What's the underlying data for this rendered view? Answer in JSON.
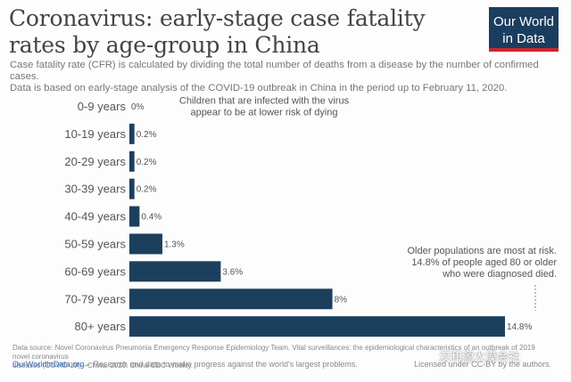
{
  "title": "Coronavirus: early-stage case fatality rates by age-group in China",
  "subtitle_line1": "Case fatality rate (CFR) is calculated by dividing the total number of deaths from a disease by the number of confirmed cases.",
  "subtitle_line2": "Data is based on early-stage analysis of the COVID-19 outbreak in China in the period up to February 11, 2020.",
  "logo": {
    "line1": "Our World",
    "line2": "in Data",
    "bg": "#1b3d5f",
    "accent": "#c8282d"
  },
  "chart_data": {
    "type": "bar",
    "orientation": "horizontal",
    "categories": [
      "0-9 years",
      "10-19 years",
      "20-29 years",
      "30-39 years",
      "40-49 years",
      "50-59 years",
      "60-69 years",
      "70-79 years",
      "80+ years"
    ],
    "values": [
      0,
      0.2,
      0.2,
      0.2,
      0.4,
      1.3,
      3.6,
      8,
      14.8
    ],
    "value_labels": [
      "0%",
      "0.2%",
      "0.2%",
      "0.2%",
      "0.4%",
      "1.3%",
      "3.6%",
      "8%",
      "14.8%"
    ],
    "unit": "%",
    "xlim": [
      0,
      14.8
    ],
    "bar_color": "#1d3f5e",
    "grid": false,
    "annotations": [
      {
        "lines": [
          "Children that are infected with the virus",
          "appear to be at lower risk of dying"
        ],
        "category": "0-9 years"
      },
      {
        "lines": [
          "Older populations are most at risk.",
          "14.8% of people aged 80 or older",
          "who were diagnosed died."
        ],
        "category": "80+ years"
      }
    ]
  },
  "footer": {
    "source_line1": "Data source: Novel Coronavirus Pneumonia Emergency Response Epidemiology Team. Vital surveillances: the epidemiological characteristics of an outbreak of 2019 novel coronavirus",
    "source_line2": "diseases (COVID-19)—China, 2020. China CDC Weekly.",
    "site": "OurWorldInData.org",
    "tagline": " – Research and data to make progress against the world's largest problems.",
    "license": "Licensed under CC-BY by the authors."
  },
  "watermark": "汉和源大漠会社"
}
